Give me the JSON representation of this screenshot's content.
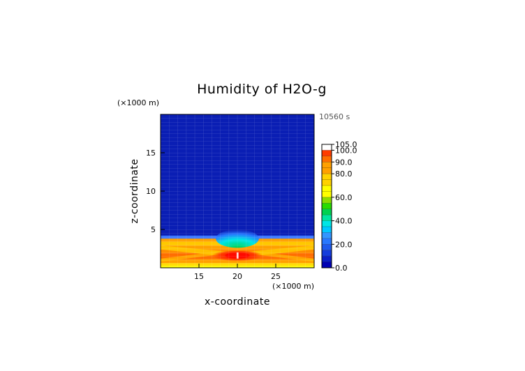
{
  "chart_data": {
    "type": "heatmap",
    "title": "Humidity of H2O-g",
    "xlabel": "x-coordinate",
    "ylabel": "z-coordinate",
    "x_unit": "(×1000 m)",
    "y_unit": "(×1000 m)",
    "time_label": "10560 s",
    "xlim": [
      10,
      30
    ],
    "ylim": [
      0,
      20
    ],
    "xticks": [
      15,
      20,
      25
    ],
    "yticks": [
      5,
      10,
      15
    ],
    "colorbar": {
      "min": 0,
      "max": 105,
      "tick_values": [
        0,
        20,
        40,
        60,
        80,
        90,
        100,
        105
      ],
      "tick_labels": [
        "0.0",
        "20.0",
        "40.0",
        "60.0",
        "80.0",
        "90.0",
        "100.0",
        "105.0"
      ],
      "colors": [
        "#0000b4",
        "#0a1ec8",
        "#143cdc",
        "#1e5aee",
        "#2878ff",
        "#3296ff",
        "#00c8ff",
        "#00e6e6",
        "#00e6a0",
        "#00d250",
        "#28dc00",
        "#8cdc00",
        "#ffff00",
        "#ffd200",
        "#ffa000",
        "#ff6e00",
        "#ff3c00",
        "#ff0000",
        "#ffffff"
      ]
    },
    "features": [
      {
        "description": "saturated moist layer near surface",
        "x_range": [
          10,
          30
        ],
        "z_range": [
          0,
          3.8
        ],
        "value_range": [
          80,
          100
        ]
      },
      {
        "description": "dry upper atmosphere",
        "x_range": [
          10,
          30
        ],
        "z_range": [
          4,
          20
        ],
        "value_range": [
          0,
          5
        ]
      },
      {
        "description": "cloud core maximum",
        "x": 20,
        "z": 1.6,
        "value": 100
      }
    ]
  }
}
